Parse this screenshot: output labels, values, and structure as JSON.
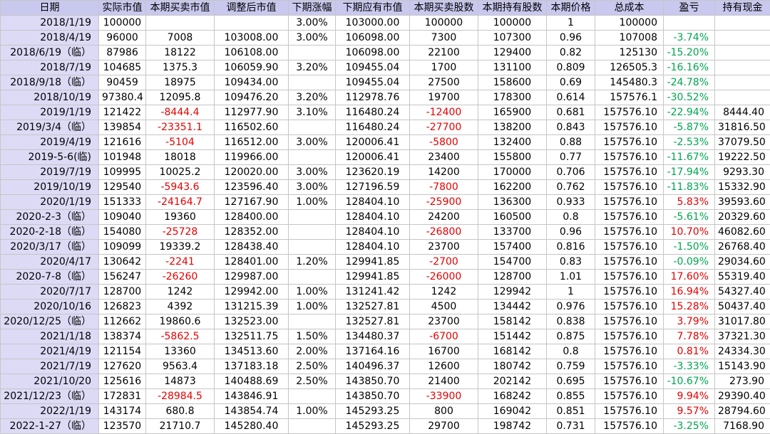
{
  "colors": {
    "negative": "#e60000",
    "gain": "#00a550",
    "header_bg": "#c9c8ef",
    "date_col_bg": "#dcdaf5"
  },
  "columns": [
    "日期",
    "实际市值",
    "本期买卖市值",
    "调整后市值",
    "下期涨幅",
    "下期应有市值",
    "本期买卖股数",
    "本期持有股数",
    "本期价格",
    "总成本",
    "盈亏",
    "持有现金"
  ],
  "rows": [
    [
      "2018/1/19",
      "100000",
      "",
      "",
      "3.00%",
      "103000.00",
      "100000",
      "100000",
      "1",
      "100000",
      "",
      ""
    ],
    [
      "2018/4/19",
      "96000",
      "7008",
      "103008.00",
      "3.00%",
      "106098.00",
      "7300",
      "107300",
      "0.96",
      "107008",
      "-3.74%",
      ""
    ],
    [
      "2018/6/19（临）",
      "87986",
      "18122",
      "106108.00",
      "",
      "106098.00",
      "22100",
      "129400",
      "0.82",
      "125130",
      "-15.20%",
      ""
    ],
    [
      "2018/7/19",
      "104685",
      "1375.3",
      "106059.90",
      "3.20%",
      "109455.04",
      "1700",
      "131100",
      "0.809",
      "126505.3",
      "-16.16%",
      ""
    ],
    [
      "2018/9/18（临）",
      "90459",
      "18975",
      "109434.00",
      "",
      "109455.04",
      "27500",
      "158600",
      "0.69",
      "145480.3",
      "-24.78%",
      ""
    ],
    [
      "2018/10/19",
      "97380.4",
      "12095.8",
      "109476.20",
      "3.20%",
      "112978.76",
      "19700",
      "178300",
      "0.614",
      "157576.1",
      "-30.52%",
      ""
    ],
    [
      "2019/1/19",
      "121422",
      "-8444.4",
      "112977.90",
      "3.10%",
      "116480.24",
      "-12400",
      "165900",
      "0.681",
      "157576.10",
      "-22.94%",
      "8444.40"
    ],
    [
      "2019/3/4（临）",
      "139854",
      "-23351.1",
      "116502.60",
      "",
      "116480.24",
      "-27700",
      "138200",
      "0.843",
      "157576.10",
      "-5.87%",
      "31816.50"
    ],
    [
      "2019/4/19",
      "121616",
      "-5104",
      "116512.00",
      "3.00%",
      "120006.41",
      "-5800",
      "132400",
      "0.88",
      "157576.10",
      "-2.53%",
      "37079.50"
    ],
    [
      "2019-5-6(临)",
      "101948",
      "18018",
      "119966.00",
      "",
      "120006.41",
      "23400",
      "155800",
      "0.77",
      "157576.10",
      "-11.67%",
      "19222.50"
    ],
    [
      "2019/7/19",
      "109995",
      "10025.2",
      "120020.00",
      "3.00%",
      "123620.19",
      "14200",
      "170000",
      "0.706",
      "157576.10",
      "-17.94%",
      "9293.30"
    ],
    [
      "2019/10/19",
      "129540",
      "-5943.6",
      "123596.40",
      "3.00%",
      "127196.59",
      "-7800",
      "162200",
      "0.762",
      "157576.10",
      "-11.83%",
      "15332.90"
    ],
    [
      "2020/1/19",
      "151333",
      "-24164.7",
      "127167.90",
      "1.00%",
      "128404.10",
      "-25900",
      "136300",
      "0.933",
      "157576.10",
      "5.83%",
      "39593.60"
    ],
    [
      "2020-2-3（临）",
      "109040",
      "19360",
      "128400.00",
      "",
      "128404.10",
      "24200",
      "160500",
      "0.8",
      "157576.10",
      "-5.61%",
      "20329.60"
    ],
    [
      "2020-2-18（临）",
      "154080",
      "-25728",
      "128352.00",
      "",
      "128404.10",
      "-26800",
      "133700",
      "0.96",
      "157576.10",
      "10.70%",
      "46082.60"
    ],
    [
      "2020/3/17（临）",
      "109099",
      "19339.2",
      "128438.40",
      "",
      "128404.10",
      "23700",
      "157400",
      "0.816",
      "157576.10",
      "-1.50%",
      "26768.40"
    ],
    [
      "2020/4/17",
      "130642",
      "-2241",
      "128401.00",
      "1.20%",
      "129941.85",
      "-2700",
      "154700",
      "0.83",
      "157576.10",
      "-0.09%",
      "29034.60"
    ],
    [
      "2020-7-8（临）",
      "156247",
      "-26260",
      "129987.00",
      "",
      "129941.85",
      "-26000",
      "128700",
      "1.01",
      "157576.10",
      "17.60%",
      "55319.40"
    ],
    [
      "2020/7/17",
      "128700",
      "1242",
      "129942.00",
      "1.00%",
      "131241.42",
      "1242",
      "129942",
      "1",
      "157576.10",
      "16.94%",
      "54327.40"
    ],
    [
      "2020/10/16",
      "126823",
      "4392",
      "131215.39",
      "1.00%",
      "132527.81",
      "4500",
      "134442",
      "0.976",
      "157576.10",
      "15.28%",
      "50437.40"
    ],
    [
      "2020/12/25（临）",
      "112662",
      "19860.6",
      "132523.00",
      "",
      "132527.81",
      "23700",
      "158142",
      "0.838",
      "157576.10",
      "3.79%",
      "31017.80"
    ],
    [
      "2021/1/18",
      "138374",
      "-5862.5",
      "132511.75",
      "1.50%",
      "134480.37",
      "-6700",
      "151442",
      "0.875",
      "157576.10",
      "7.78%",
      "37321.30"
    ],
    [
      "2021/4/19",
      "121154",
      "13360",
      "134513.60",
      "2.00%",
      "137164.16",
      "16700",
      "168142",
      "0.8",
      "157576.10",
      "0.81%",
      "24334.30"
    ],
    [
      "2021/7/19",
      "127620",
      "9563.4",
      "137183.18",
      "2.50%",
      "140496.37",
      "12600",
      "180742",
      "0.759",
      "157576.10",
      "-3.33%",
      "15143.90"
    ],
    [
      "2021/10/20",
      "125616",
      "14873",
      "140488.69",
      "2.50%",
      "143850.70",
      "21400",
      "202142",
      "0.695",
      "157576.10",
      "-10.67%",
      "273.90"
    ],
    [
      "2021/12/23（临）",
      "172831",
      "-28984.5",
      "143846.91",
      "",
      "143850.70",
      "-33900",
      "168242",
      "0.855",
      "157576.10",
      "9.94%",
      "29390.40"
    ],
    [
      "2022/1/19",
      "143174",
      "680.8",
      "143854.74",
      "1.00%",
      "145293.25",
      "800",
      "169042",
      "0.851",
      "157576.10",
      "9.57%",
      "28794.60"
    ],
    [
      "2022-1-27（临）",
      "123570",
      "21710.7",
      "145280.40",
      "",
      "145293.25",
      "29700",
      "198742",
      "0.731",
      "157576.10",
      "-3.25%",
      "7168.90"
    ]
  ]
}
